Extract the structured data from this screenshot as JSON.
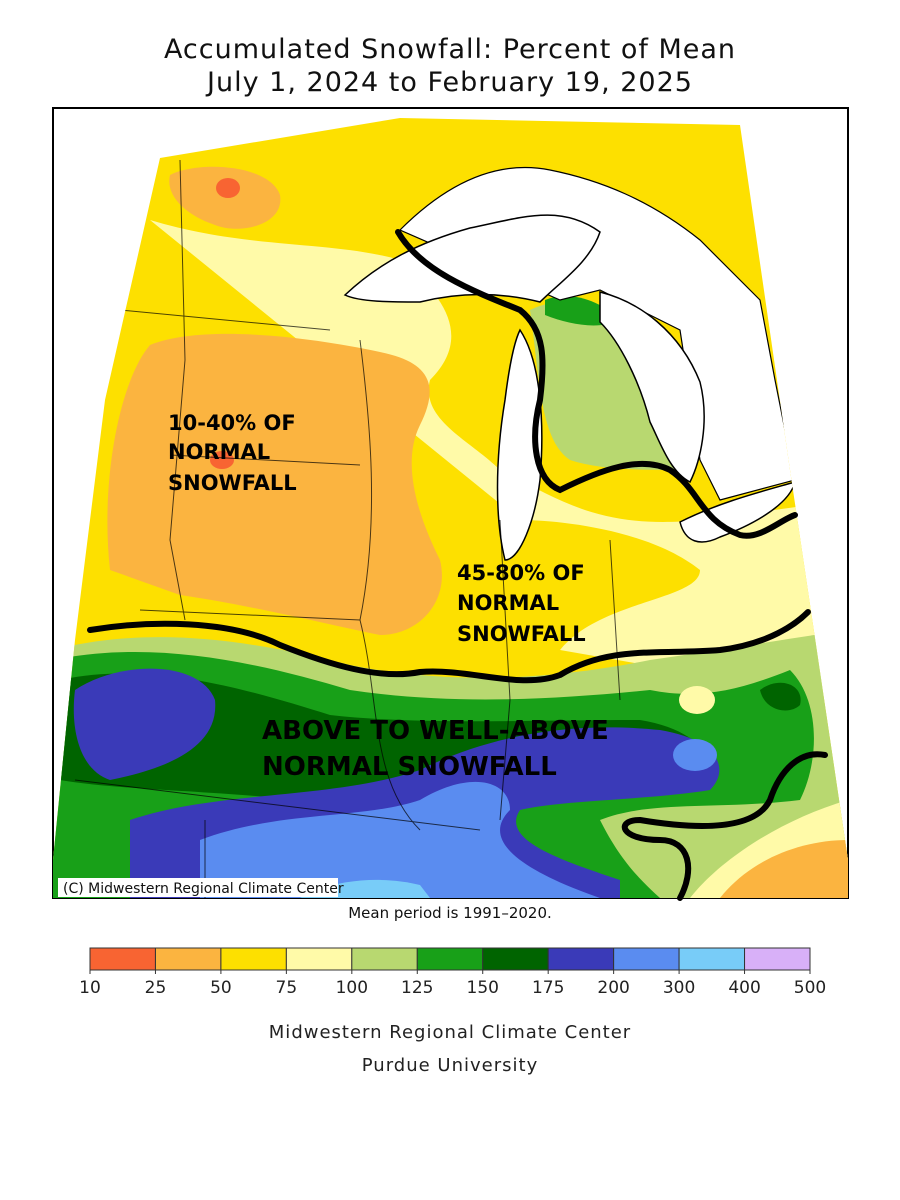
{
  "title": [
    "Accumulated Snowfall: Percent of Mean",
    "July 1, 2024 to February 19, 2025"
  ],
  "annotations": [
    {
      "lines": [
        "10-40% OF",
        "NORMAL",
        "SNOWFALL"
      ]
    },
    {
      "lines": [
        "45-80% OF",
        "NORMAL",
        "SNOWFALL"
      ]
    },
    {
      "lines": [
        "ABOVE TO WELL-ABOVE",
        "NORMAL SNOWFALL"
      ]
    }
  ],
  "copyright": "(C) Midwestern Regional Climate Center",
  "note": "Mean period is 1991–2020.",
  "legend": {
    "bounds": [
      10,
      25,
      50,
      75,
      100,
      125,
      150,
      175,
      200,
      300,
      400,
      500
    ],
    "colors": [
      "#f86432",
      "#fbb440",
      "#fde000",
      "#fffaa8",
      "#b8d870",
      "#18a018",
      "#006400",
      "#3a3ab8",
      "#5a8cf0",
      "#78ccf8",
      "#d8b0f8"
    ]
  },
  "footer": [
    "Midwestern Regional Climate Center",
    "Purdue University"
  ]
}
